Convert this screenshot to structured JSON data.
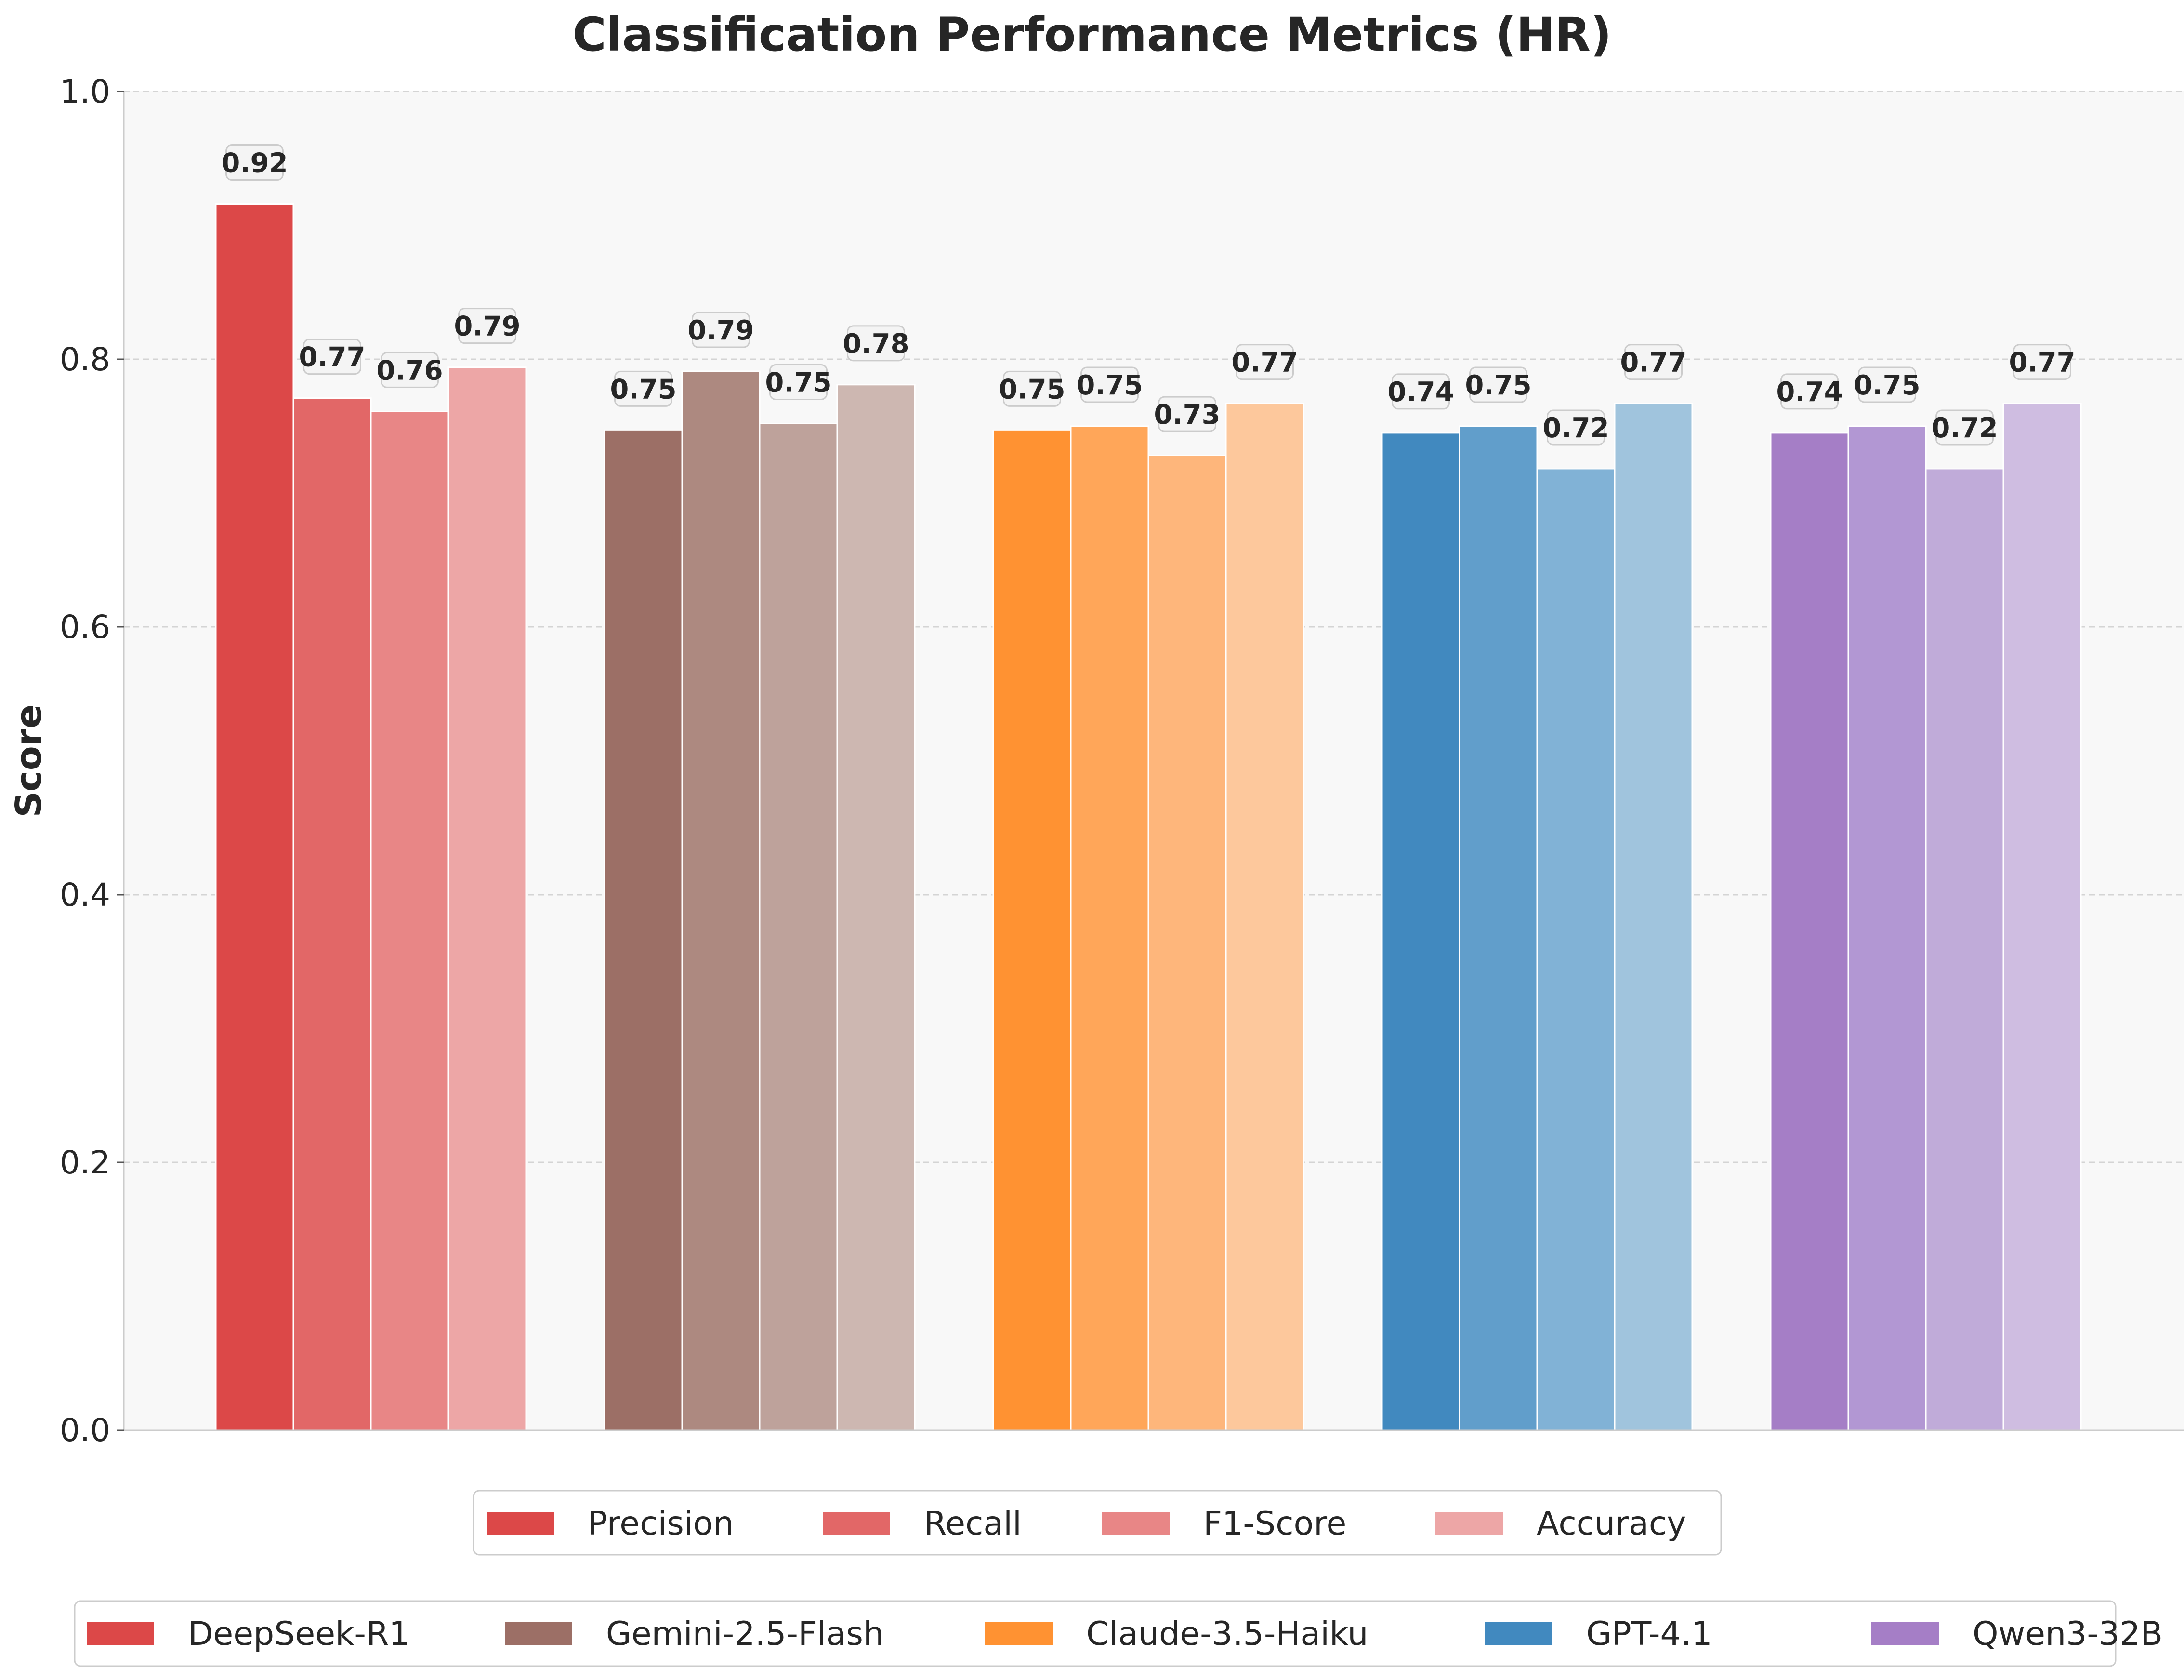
{
  "chart_data": {
    "type": "bar",
    "title": "Classification Performance Metrics (HR)",
    "xlabel": "",
    "ylabel": "Score",
    "ylim": [
      0,
      1.0
    ],
    "yticks": [
      "0.0",
      "0.2",
      "0.4",
      "0.6",
      "0.8",
      "1.0"
    ],
    "grid": true,
    "metrics": [
      "Precision",
      "Recall",
      "F1-Score",
      "Accuracy"
    ],
    "models": [
      {
        "name": "DeepSeek-R1",
        "values": [
          0.916,
          0.771,
          0.761,
          0.794
        ],
        "labels": [
          "0.92",
          "0.77",
          "0.76",
          "0.79"
        ],
        "colors": [
          "#dc4848",
          "#e26767",
          "#e88686",
          "#eda6a6"
        ]
      },
      {
        "name": "Gemini-2.5-Flash",
        "values": [
          0.747,
          0.791,
          0.752,
          0.781
        ],
        "labels": [
          "0.75",
          "0.79",
          "0.75",
          "0.78"
        ],
        "colors": [
          "#9c6f66",
          "#ad8980",
          "#bea29b",
          "#cdb7b1"
        ]
      },
      {
        "name": "Claude-3.5-Haiku",
        "values": [
          0.747,
          0.75,
          0.728,
          0.767
        ],
        "labels": [
          "0.75",
          "0.75",
          "0.73",
          "0.77"
        ],
        "colors": [
          "#ff9232",
          "#ffa659",
          "#feb67b",
          "#fdc89c"
        ]
      },
      {
        "name": "GPT-4.1",
        "values": [
          0.745,
          0.75,
          0.718,
          0.767
        ],
        "labels": [
          "0.74",
          "0.75",
          "0.72",
          "0.77"
        ],
        "colors": [
          "#4189bf",
          "#619ecb",
          "#81b2d6",
          "#a0c4dd"
        ]
      },
      {
        "name": "Qwen3-32B",
        "values": [
          0.745,
          0.75,
          0.718,
          0.767
        ],
        "labels": [
          "0.74",
          "0.75",
          "0.72",
          "0.77"
        ],
        "colors": [
          "#a57ec6",
          "#b297d3",
          "#c0abd9",
          "#cfbde1"
        ]
      }
    ],
    "legend_metrics": {
      "placement": "below-plot",
      "colors": [
        "#dc4848",
        "#e26767",
        "#e88686",
        "#eda6a6"
      ]
    },
    "legend_models": {
      "placement": "bottom",
      "colors": [
        "#dc4848",
        "#9c6f66",
        "#ff9232",
        "#4189bf",
        "#a57ec6"
      ]
    }
  }
}
